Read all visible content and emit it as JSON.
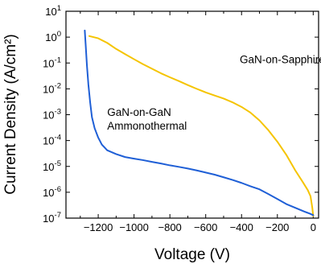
{
  "chart_data": {
    "type": "line",
    "title": "",
    "xlabel": "Voltage (V)",
    "ylabel": "Current Density (A/cm²)",
    "xlim": [
      -1380,
      30
    ],
    "ylim": [
      1e-07,
      10
    ],
    "yscale": "log",
    "x_ticks": [
      {
        "value": -1200,
        "label": "−1200"
      },
      {
        "value": -1000,
        "label": "−1000"
      },
      {
        "value": -800,
        "label": "−800"
      },
      {
        "value": -600,
        "label": "−600"
      },
      {
        "value": -400,
        "label": "−400"
      },
      {
        "value": -200,
        "label": "−200"
      },
      {
        "value": 0,
        "label": "0"
      }
    ],
    "y_ticks": [
      {
        "exp": 1,
        "base": "10",
        "sup": "1"
      },
      {
        "exp": 0,
        "base": "10",
        "sup": "0"
      },
      {
        "exp": -1,
        "base": "10",
        "sup": "-1"
      },
      {
        "exp": -2,
        "base": "10",
        "sup": "-2"
      },
      {
        "exp": -3,
        "base": "10",
        "sup": "-3"
      },
      {
        "exp": -4,
        "base": "10",
        "sup": "-4"
      },
      {
        "exp": -5,
        "base": "10",
        "sup": "-5"
      },
      {
        "exp": -6,
        "base": "10",
        "sup": "-6"
      },
      {
        "exp": -7,
        "base": "10",
        "sup": "-7"
      }
    ],
    "grid": false,
    "series": [
      {
        "name": "GaN-on-Sapphire",
        "color": "#f5c400",
        "points": [
          [
            -1250,
            1.1
          ],
          [
            -1200,
            0.9
          ],
          [
            -1150,
            0.6
          ],
          [
            -1100,
            0.35
          ],
          [
            -1050,
            0.22
          ],
          [
            -1000,
            0.14
          ],
          [
            -950,
            0.09
          ],
          [
            -900,
            0.06
          ],
          [
            -850,
            0.04
          ],
          [
            -800,
            0.028
          ],
          [
            -750,
            0.02
          ],
          [
            -700,
            0.014
          ],
          [
            -650,
            0.01
          ],
          [
            -600,
            0.0073
          ],
          [
            -550,
            0.0055
          ],
          [
            -500,
            0.0042
          ],
          [
            -450,
            0.003
          ],
          [
            -400,
            0.002
          ],
          [
            -350,
            0.0012
          ],
          [
            -300,
            0.0006
          ],
          [
            -250,
            0.00025
          ],
          [
            -200,
            9e-05
          ],
          [
            -150,
            2.8e-05
          ],
          [
            -100,
            7e-06
          ],
          [
            -60,
            2.6e-06
          ],
          [
            -30,
            1.2e-06
          ],
          [
            -15,
            7e-07
          ],
          [
            -5,
            2.5e-07
          ],
          [
            0,
            1.2e-07
          ]
        ]
      },
      {
        "name": "GaN-on-GaN Ammonothermal",
        "color": "#1f5fd6",
        "points": [
          [
            -1275,
            1.8
          ],
          [
            -1270,
            0.5
          ],
          [
            -1263,
            0.08
          ],
          [
            -1255,
            0.015
          ],
          [
            -1245,
            0.003
          ],
          [
            -1235,
            0.0008
          ],
          [
            -1220,
            0.0003
          ],
          [
            -1200,
            0.00013
          ],
          [
            -1180,
            7e-05
          ],
          [
            -1150,
            4.2e-05
          ],
          [
            -1100,
            3e-05
          ],
          [
            -1050,
            2.3e-05
          ],
          [
            -1000,
            2e-05
          ],
          [
            -950,
            1.75e-05
          ],
          [
            -900,
            1.5e-05
          ],
          [
            -850,
            1.3e-05
          ],
          [
            -800,
            1.1e-05
          ],
          [
            -750,
            9.6e-06
          ],
          [
            -700,
            8.3e-06
          ],
          [
            -650,
            7e-06
          ],
          [
            -600,
            5.8e-06
          ],
          [
            -550,
            4.8e-06
          ],
          [
            -500,
            3.8e-06
          ],
          [
            -450,
            3e-06
          ],
          [
            -400,
            2.3e-06
          ],
          [
            -350,
            1.7e-06
          ],
          [
            -300,
            1.3e-06
          ],
          [
            -250,
            8.5e-07
          ],
          [
            -200,
            5.5e-07
          ],
          [
            -150,
            3.5e-07
          ],
          [
            -100,
            2.5e-07
          ],
          [
            -50,
            1.8e-07
          ],
          [
            -20,
            1.5e-07
          ],
          [
            0,
            1.3e-07
          ]
        ]
      }
    ],
    "annotations": [
      {
        "lines": [
          "GaN-on-Sapphire"
        ],
        "x": -410,
        "y": 0.1
      },
      {
        "lines": [
          "GaN-on-GaN",
          "Ammonothermal"
        ],
        "x": -1150,
        "y": 0.0009
      }
    ]
  }
}
